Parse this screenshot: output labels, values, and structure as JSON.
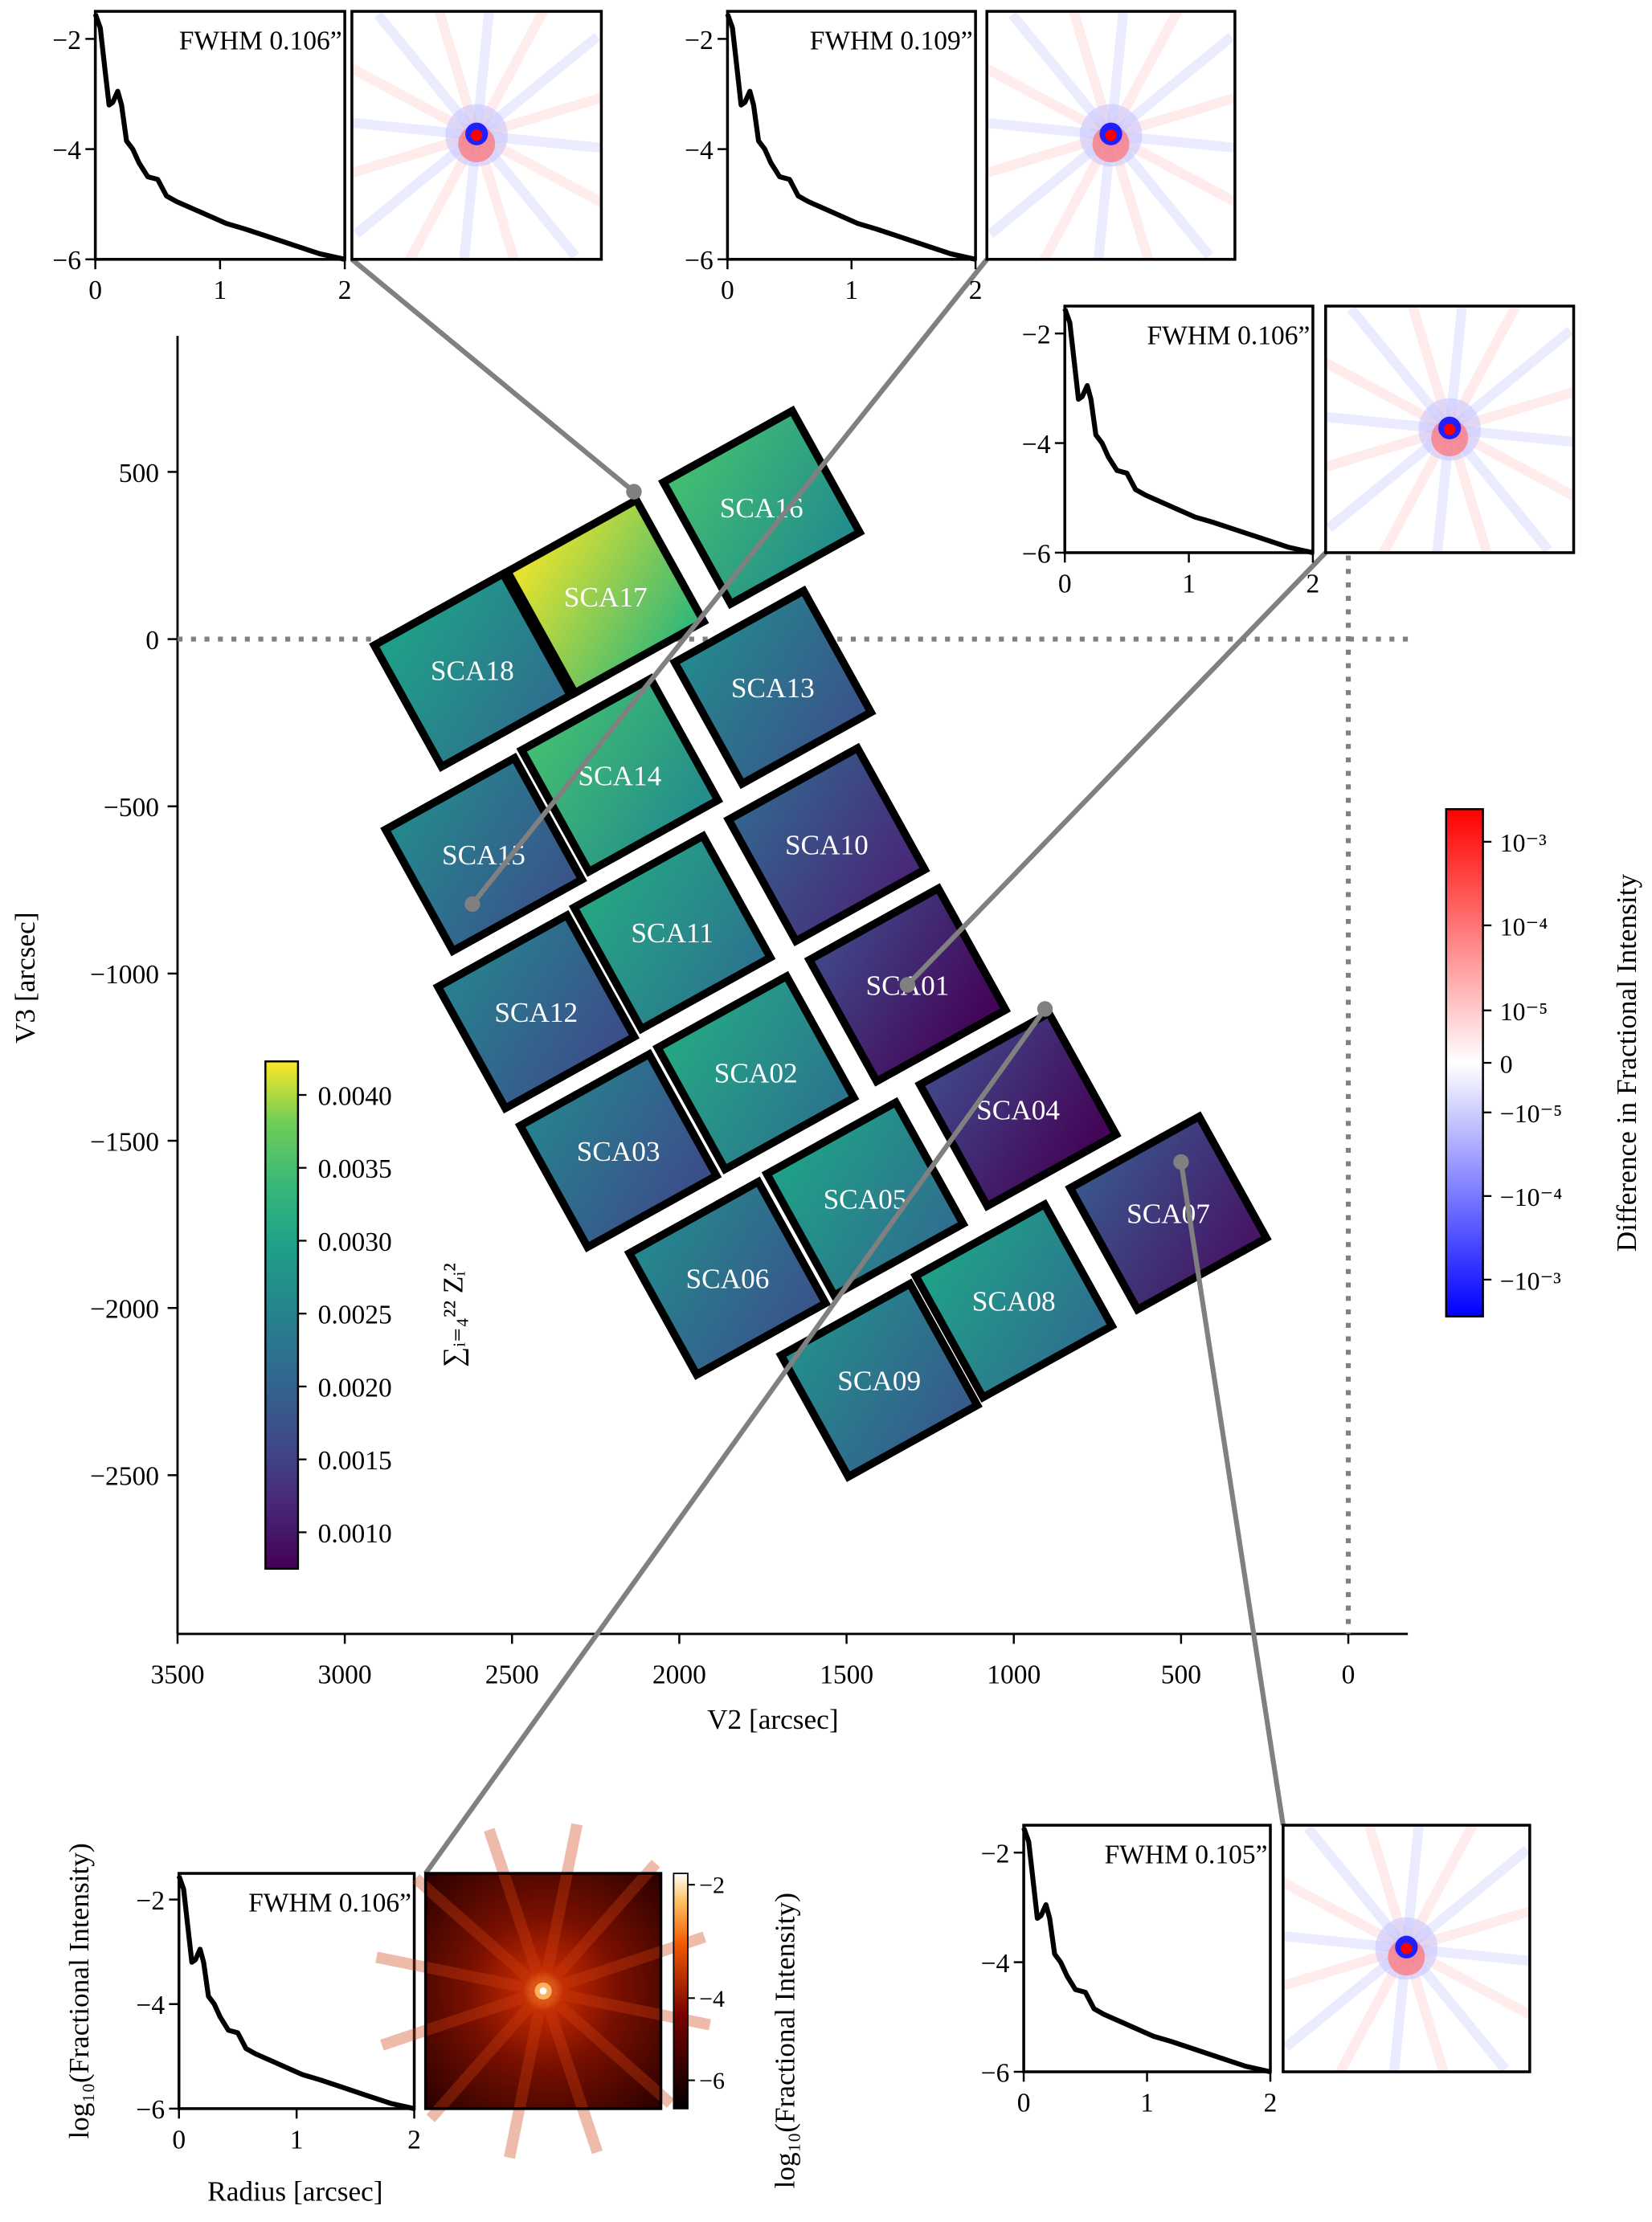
{
  "chart_data": {
    "type": "heatmap",
    "xlabel": "V2 [arcsec]",
    "ylabel": "V3 [arcsec]",
    "xlim": [
      3500,
      -175
    ],
    "ylim": [
      -2950,
      900
    ],
    "x_ticks": [
      "3500",
      "3000",
      "2500",
      "2000",
      "1500",
      "1000",
      "500",
      "0"
    ],
    "x_tick_values": [
      3500,
      3000,
      2500,
      2000,
      1500,
      1000,
      500,
      0
    ],
    "y_ticks": [
      "500",
      "0",
      "−500",
      "−1000",
      "−1500",
      "−2000",
      "−2500"
    ],
    "y_tick_values": [
      500,
      0,
      -500,
      -1000,
      -1500,
      -2000,
      -2500
    ],
    "reference_lines": {
      "v2": 0,
      "v3": 0,
      "style": "dotted",
      "color": "#808080"
    },
    "detectors": [
      {
        "name": "SCA16",
        "value": 0.0031
      },
      {
        "name": "SCA17",
        "value": 0.0038
      },
      {
        "name": "SCA18",
        "value": 0.0026
      },
      {
        "name": "SCA13",
        "value": 0.0022
      },
      {
        "name": "SCA14",
        "value": 0.0031
      },
      {
        "name": "SCA15",
        "value": 0.0022
      },
      {
        "name": "SCA10",
        "value": 0.0016
      },
      {
        "name": "SCA11",
        "value": 0.0027
      },
      {
        "name": "SCA12",
        "value": 0.0021
      },
      {
        "name": "SCA01",
        "value": 0.0012
      },
      {
        "name": "SCA02",
        "value": 0.0027
      },
      {
        "name": "SCA03",
        "value": 0.0021
      },
      {
        "name": "SCA04",
        "value": 0.0012
      },
      {
        "name": "SCA05",
        "value": 0.0026
      },
      {
        "name": "SCA06",
        "value": 0.0022
      },
      {
        "name": "SCA07",
        "value": 0.0014
      },
      {
        "name": "SCA08",
        "value": 0.0026
      },
      {
        "name": "SCA09",
        "value": 0.0023
      }
    ],
    "colorbar": {
      "label": "∑ᵢ₌₄²² Zᵢ²",
      "colormap": "viridis",
      "range": [
        0.00075,
        0.00423
      ],
      "ticks": [
        "0.0040",
        "0.0035",
        "0.0030",
        "0.0025",
        "0.0020",
        "0.0015",
        "0.0010"
      ],
      "tick_values": [
        0.004,
        0.0035,
        0.003,
        0.0025,
        0.002,
        0.0015,
        0.001
      ]
    },
    "difference_colorbar": {
      "label": "Difference in Fractional Intensity",
      "colormap": "bwr",
      "scale": "symlog",
      "ticks": [
        "10⁻³",
        "10⁻⁴",
        "10⁻⁵",
        "0",
        "−10⁻⁵",
        "−10⁻⁴",
        "−10⁻³"
      ]
    },
    "profile": {
      "xlabel": "Radius [arcsec]",
      "ylabel": "log₁₀(Fractional Intensity)",
      "xlim": [
        0,
        2
      ],
      "ylim": [
        -6,
        -1.5
      ],
      "x_ticks": [
        "0",
        "1",
        "2"
      ],
      "y_ticks": [
        "−2",
        "−4",
        "−6"
      ],
      "radius": [
        0,
        0.04,
        0.08,
        0.11,
        0.14,
        0.18,
        0.21,
        0.25,
        0.3,
        0.35,
        0.42,
        0.5,
        0.57,
        0.65,
        0.8,
        0.95,
        1.05,
        1.2,
        1.4,
        1.6,
        1.8,
        2.0
      ],
      "log_intensity": [
        -1.55,
        -1.8,
        -2.6,
        -3.2,
        -3.15,
        -2.95,
        -3.2,
        -3.85,
        -4.0,
        -4.25,
        -4.5,
        -4.55,
        -4.85,
        -4.95,
        -5.1,
        -5.25,
        -5.35,
        -5.45,
        -5.6,
        -5.75,
        -5.9,
        -6.0
      ]
    },
    "insets": [
      {
        "fwhm": "FWHM 0.106”",
        "image": "difference"
      },
      {
        "fwhm": "FWHM 0.109”",
        "image": "difference"
      },
      {
        "fwhm": "FWHM 0.106”",
        "image": "difference"
      },
      {
        "fwhm": "FWHM 0.106”",
        "image": "log-psf",
        "image_colorbar_ticks": [
          "−2",
          "−4",
          "−6"
        ],
        "colormap": "gist_heat"
      },
      {
        "fwhm": "FWHM 0.105”",
        "image": "difference"
      }
    ]
  }
}
